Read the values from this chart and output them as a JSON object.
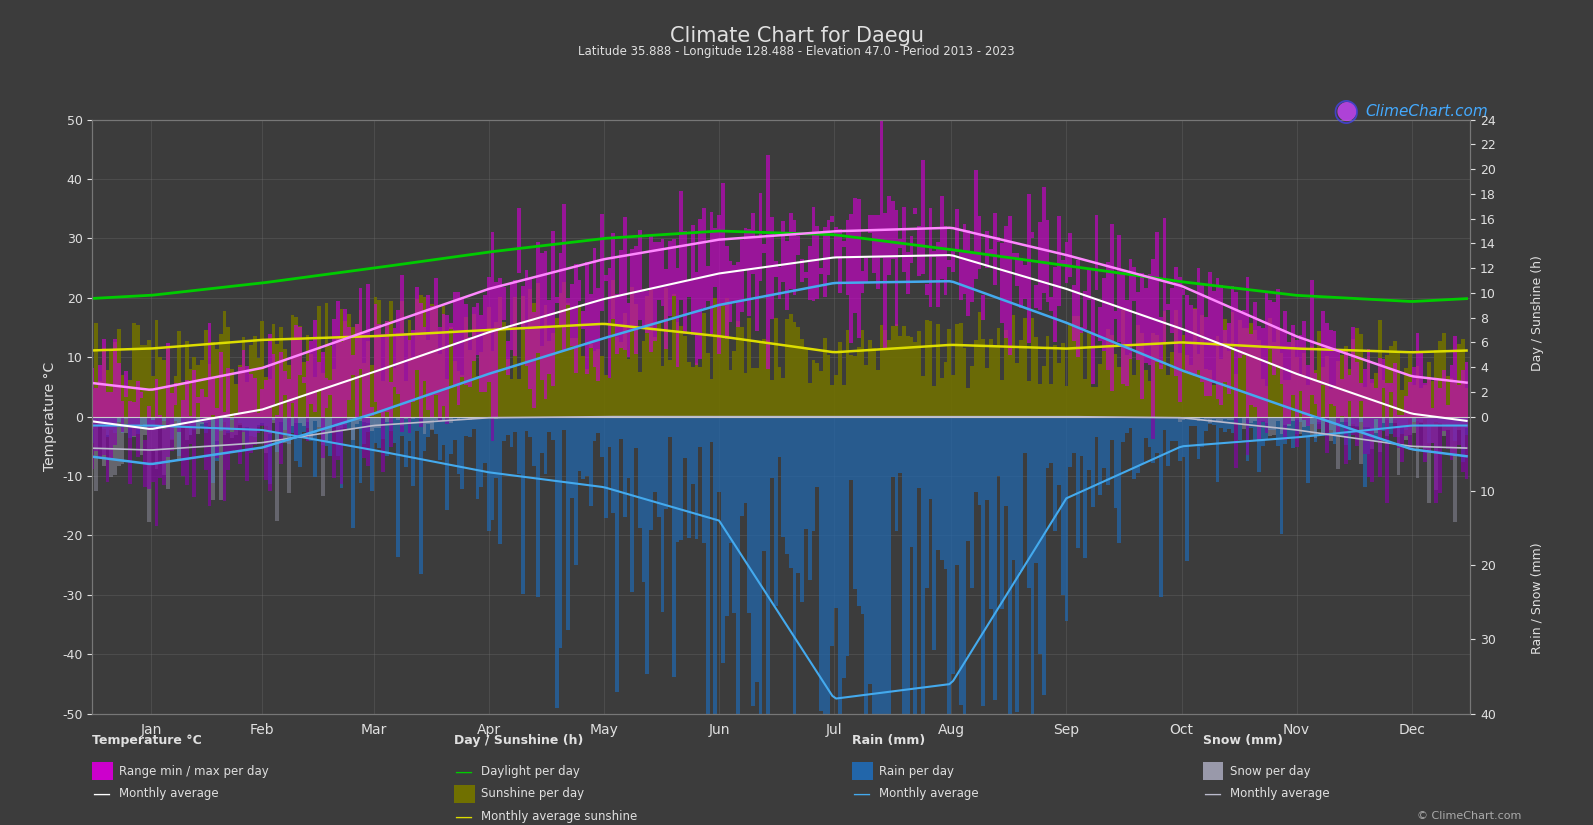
{
  "title": "Climate Chart for Daegu",
  "subtitle": "Latitude 35.888 - Longitude 128.488 - Elevation 47.0 - Period 2013 - 2023",
  "bg_color": "#3c3c3c",
  "plot_bg_color": "#3c3c3c",
  "grid_color": "#777777",
  "text_color": "#e0e0e0",
  "months": [
    "Jan",
    "Feb",
    "Mar",
    "Apr",
    "May",
    "Jun",
    "Jul",
    "Aug",
    "Sep",
    "Oct",
    "Nov",
    "Dec"
  ],
  "temp_ylim": [
    -50,
    50
  ],
  "temp_yticks": [
    -50,
    -40,
    -30,
    -20,
    -10,
    0,
    10,
    20,
    30,
    40,
    50
  ],
  "sunshine_yticks_right": [
    0,
    2,
    4,
    6,
    8,
    10,
    12,
    14,
    16,
    18,
    20,
    22,
    24
  ],
  "rain_yticks_right2": [
    0,
    10,
    20,
    30,
    40
  ],
  "monthly_avg_temp": [
    -2.1,
    1.2,
    7.5,
    14.2,
    19.8,
    24.1,
    26.8,
    27.2,
    21.5,
    14.8,
    7.2,
    0.5
  ],
  "monthly_avg_max": [
    4.5,
    8.2,
    14.8,
    21.5,
    26.5,
    29.8,
    31.2,
    31.8,
    27.2,
    22.0,
    13.5,
    6.8
  ],
  "monthly_avg_min": [
    -8.0,
    -5.2,
    0.5,
    7.2,
    13.2,
    18.8,
    22.5,
    22.8,
    15.8,
    7.8,
    1.0,
    -5.5
  ],
  "daylight_hours": [
    9.8,
    10.8,
    12.0,
    13.3,
    14.4,
    15.0,
    14.7,
    13.5,
    12.2,
    10.9,
    9.8,
    9.3
  ],
  "sunshine_hours": [
    5.5,
    6.2,
    6.5,
    7.0,
    7.5,
    6.5,
    5.2,
    5.8,
    5.5,
    6.0,
    5.5,
    5.2
  ],
  "daily_rain_mm": [
    1.2,
    1.8,
    4.5,
    7.5,
    9.5,
    14.0,
    38.0,
    36.0,
    11.0,
    4.0,
    2.8,
    1.2
  ],
  "daily_snow_mm": [
    4.5,
    3.5,
    1.2,
    0.15,
    0.0,
    0.0,
    0.0,
    0.0,
    0.0,
    0.15,
    1.8,
    4.0
  ],
  "days_per_month": [
    31,
    28,
    31,
    30,
    31,
    30,
    31,
    31,
    30,
    31,
    30,
    31
  ],
  "colors": {
    "temp_range_above": "#cc00cc",
    "temp_range_below_zero_temp": "#1a5a90",
    "temp_range_below_zero_rain": "#1a5a90",
    "sunshine_bar": "#707000",
    "daylight_line": "#00cc00",
    "sunshine_line": "#dddd00",
    "avg_max_line": "#ff88ff",
    "avg_temp_line": "#ffffff",
    "avg_min_line": "#44aaee",
    "rain_bar": "#2266aa",
    "snow_bar": "#9999aa",
    "rain_avg_line": "#44aaee",
    "snow_avg_line": "#bbbbcc"
  }
}
